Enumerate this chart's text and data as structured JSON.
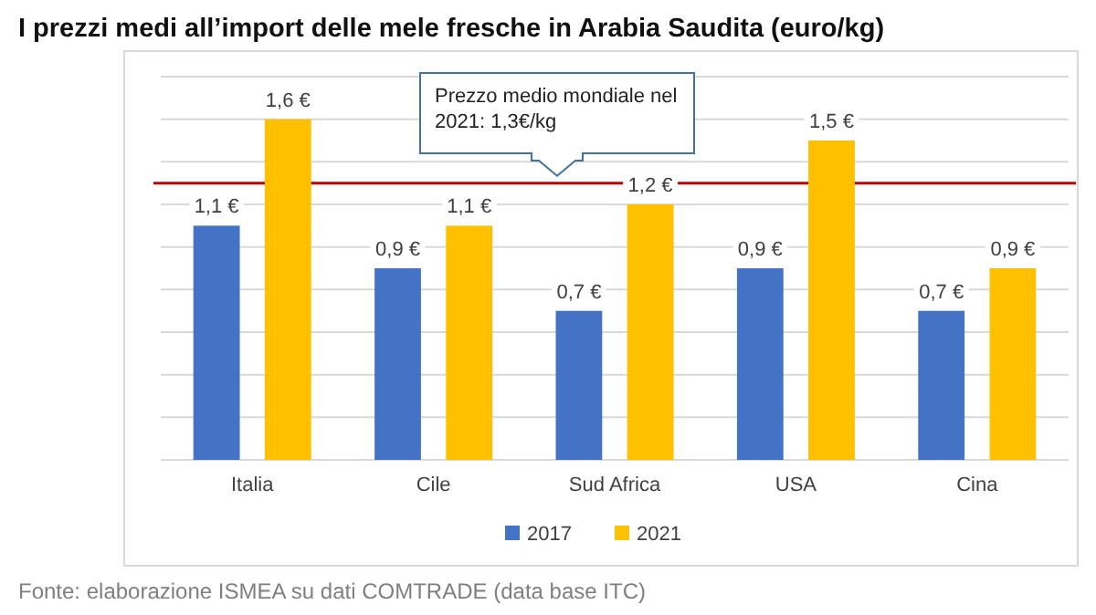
{
  "chart_data": {
    "type": "bar",
    "title": "I prezzi medi all’import delle mele fresche in Arabia Saudita (euro/kg)",
    "categories": [
      "Italia",
      "Cile",
      "Sud Africa",
      "USA",
      "Cina"
    ],
    "series": [
      {
        "name": "2017",
        "color": "#4472c4",
        "values": [
          1.1,
          0.9,
          0.7,
          0.9,
          0.7
        ],
        "value_labels": [
          "1,1 €",
          "0,9 €",
          "0,7 €",
          "0,9 €",
          "0,7 €"
        ]
      },
      {
        "name": "2021",
        "color": "#ffc000",
        "values": [
          1.6,
          1.1,
          1.2,
          1.5,
          0.9
        ],
        "value_labels": [
          "1,6 €",
          "1,1 €",
          "1,2 €",
          "1,5 €",
          "0,9 €"
        ]
      }
    ],
    "ylim": [
      0,
      1.8
    ],
    "yticks": [
      {
        "value": 0,
        "label": null
      },
      {
        "value": 0.2,
        "label": null
      },
      {
        "value": 0.4,
        "label": null
      },
      {
        "value": 0.6,
        "label": null
      },
      {
        "value": 0.8,
        "label": null
      },
      {
        "value": 1,
        "label": null
      },
      {
        "value": 1.2,
        "label": null
      },
      {
        "value": 1.4,
        "label": null
      },
      {
        "value": 1.6,
        "label": null
      },
      {
        "value": 1.8,
        "label": null
      }
    ],
    "grid": "y",
    "legend": "bottom",
    "ref_lines": [
      {
        "axis": "y",
        "value": 1.3,
        "label": "Prezzo medio mondiale nel 2021: 1,3€/kg",
        "color": "#c00000"
      }
    ],
    "annotations": [
      "Fonte: elaborazione ISMEA su dati COMTRADE (data base ITC)"
    ]
  }
}
